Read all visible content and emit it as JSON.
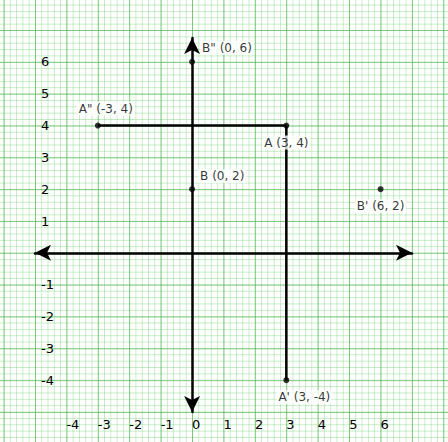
{
  "chart_data": {
    "type": "scatter",
    "points": [
      {
        "label": "A (3, 4)",
        "x": 3,
        "y": 4
      },
      {
        "label": "A' (3, -4)",
        "x": 3,
        "y": -4
      },
      {
        "label": "A\" (-3, 4)",
        "x": -3,
        "y": 4
      },
      {
        "label": "B (0, 2)",
        "x": 0,
        "y": 2
      },
      {
        "label": "B' (6, 2)",
        "x": 6,
        "y": 2
      },
      {
        "label": "B\" (0, 6)",
        "x": 0,
        "y": 6
      }
    ],
    "lines": [
      {
        "x": [
          -3,
          3
        ],
        "y": [
          4,
          4
        ]
      },
      {
        "x": [
          3,
          3
        ],
        "y": [
          4,
          -4
        ]
      }
    ],
    "color": "#000000",
    "xlim": [
      -5,
      7
    ],
    "ylim": [
      -5,
      6.75
    ],
    "xticks": [
      -4,
      -3,
      -2,
      -1,
      0,
      1,
      2,
      3,
      4,
      5,
      6
    ],
    "yticks": [
      -4,
      -3,
      -2,
      -1,
      1,
      2,
      3,
      4,
      5,
      6
    ],
    "grid": true
  }
}
